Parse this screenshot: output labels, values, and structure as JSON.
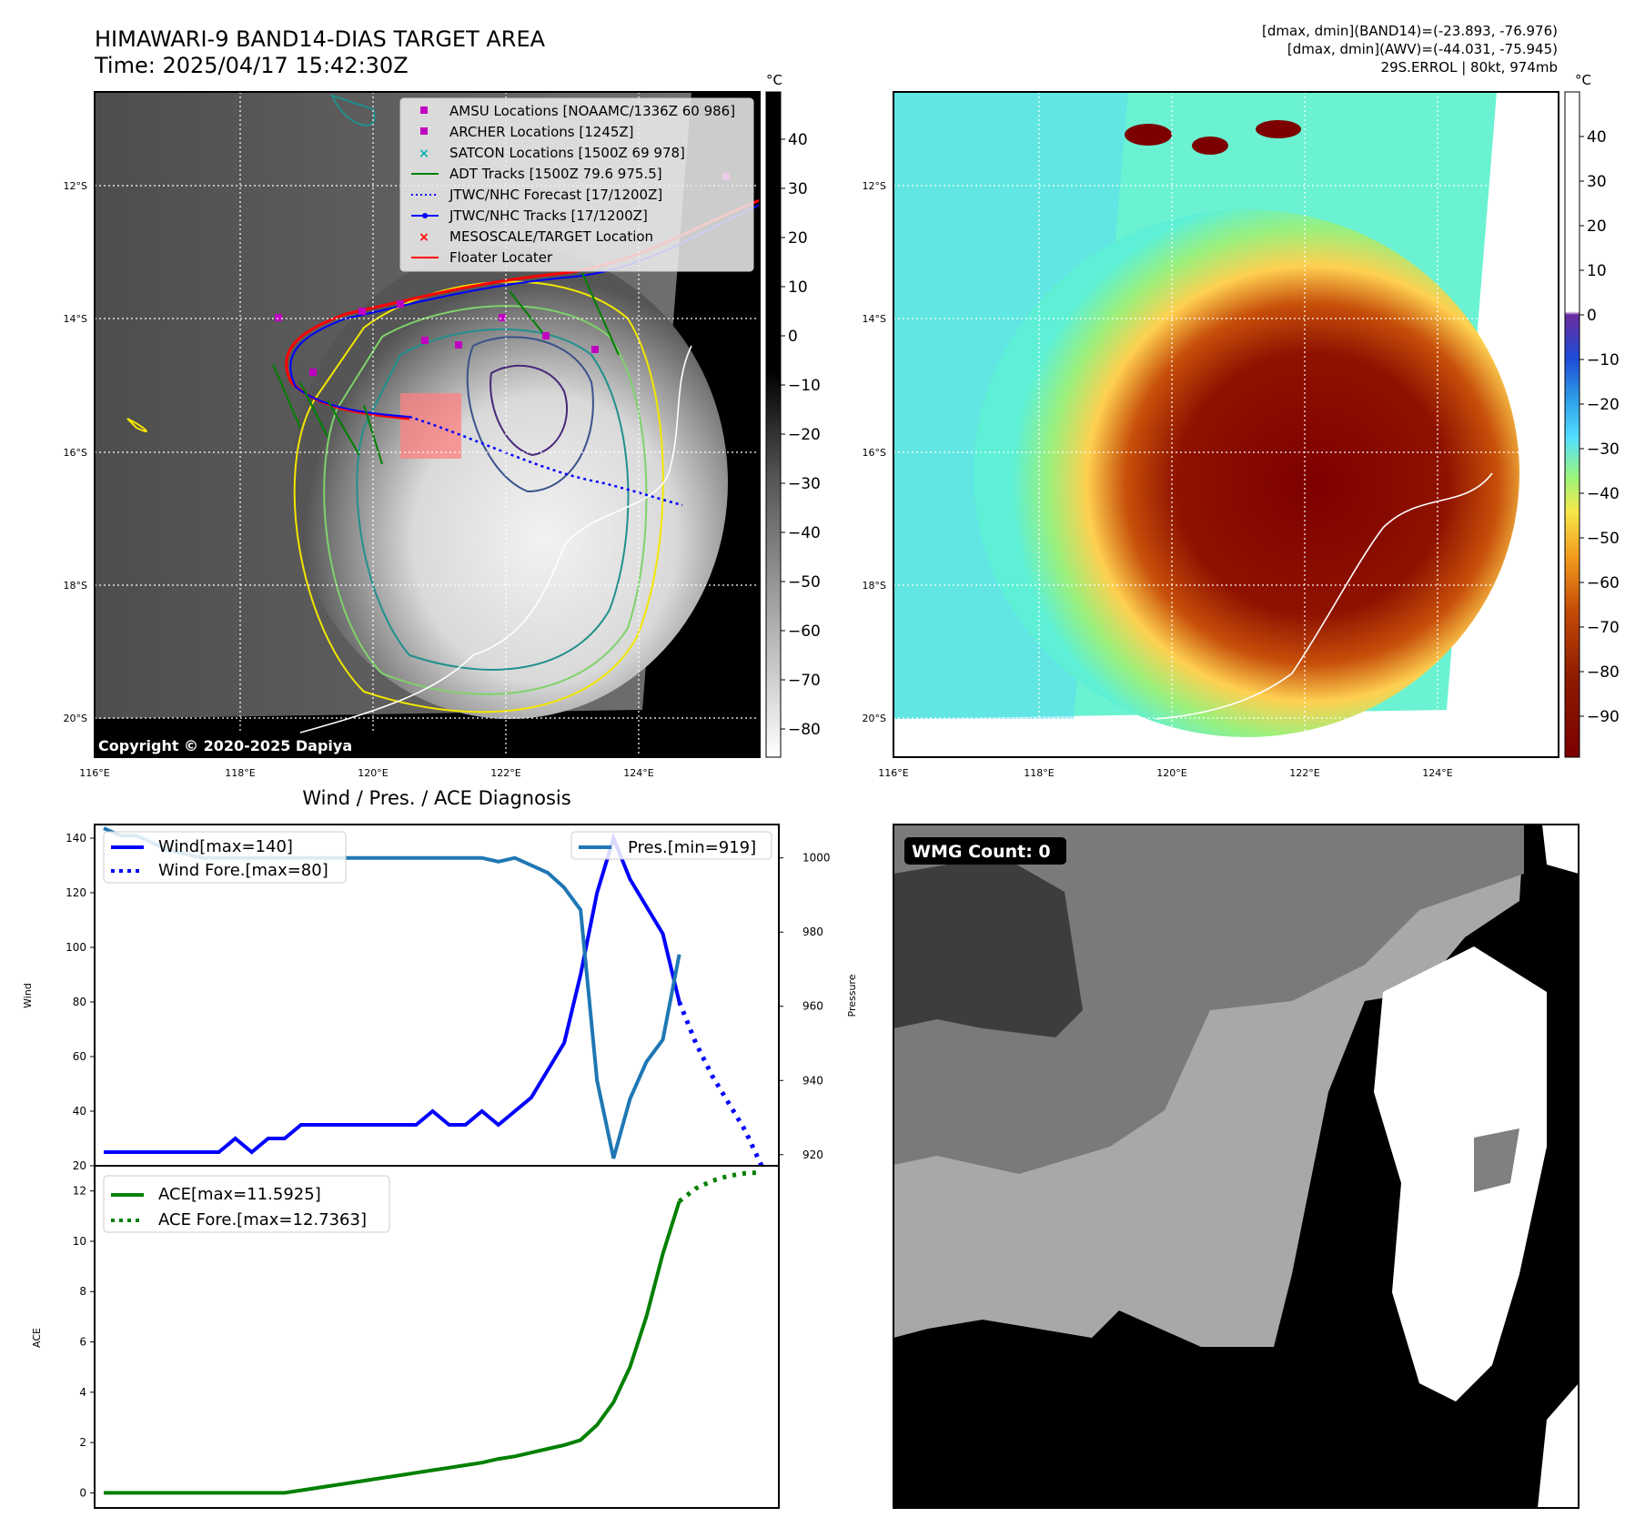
{
  "header": {
    "title": "HIMAWARI-9 BAND14-DIAS TARGET AREA",
    "time": "Time: 2025/04/17 15:42:30Z",
    "stat_band14": "[dmax, dmin](BAND14)=(-23.893, -76.976)",
    "stat_awv": "[dmax, dmin](AWV)=(-44.031, -75.945)",
    "storm_info": "29S.ERROL | 80kt, 974mb"
  },
  "map_axes": {
    "lon_ticks": [
      "116°E",
      "118°E",
      "120°E",
      "122°E",
      "124°E"
    ],
    "lat_ticks": [
      "12°S",
      "14°S",
      "16°S",
      "18°S",
      "20°S"
    ]
  },
  "colorbar_left": {
    "unit": "°C",
    "ticks": [
      "40",
      "30",
      "20",
      "10",
      "0",
      "−10",
      "−20",
      "−30",
      "−40",
      "−50",
      "−60",
      "−70",
      "−80"
    ]
  },
  "colorbar_right": {
    "unit": "°C",
    "ticks": [
      "40",
      "30",
      "20",
      "10",
      "0",
      "−10",
      "−20",
      "−30",
      "−40",
      "−50",
      "−60",
      "−70",
      "−80",
      "−90"
    ]
  },
  "legend_map": [
    {
      "label": "AMSU Locations [NOAAMC/1336Z 60 986]",
      "color": "#c000c0",
      "marker": "square"
    },
    {
      "label": "ARCHER Locations [1245Z]",
      "color": "#c000c0",
      "marker": "square"
    },
    {
      "label": "SATCON Locations [1500Z 69 978]",
      "color": "#00b0b0",
      "marker": "x"
    },
    {
      "label": "ADT Tracks [1500Z 79.6 975.5]",
      "color": "#008000",
      "marker": "line"
    },
    {
      "label": "JTWC/NHC Forecast [17/1200Z]",
      "color": "#0000ff",
      "marker": "dotted"
    },
    {
      "label": "JTWC/NHC Tracks [17/1200Z]",
      "color": "#0000ff",
      "marker": "line-dot"
    },
    {
      "label": "MESOSCALE/TARGET Location",
      "color": "#ff0000",
      "marker": "x"
    },
    {
      "label": "Floater Locater",
      "color": "#ff0000",
      "marker": "line"
    }
  ],
  "copyright": "Copyright © 2020-2025 Dapiya",
  "wmg_label": "WMG Count: 0",
  "chart_data": [
    {
      "type": "line",
      "title": "Wind / Pres. / ACE Diagnosis",
      "ylabel": "Wind",
      "ylabel_right": "Pressure",
      "ylim": [
        20,
        145
      ],
      "ylim_right": [
        917,
        1009
      ],
      "yticks": [
        "140",
        "120",
        "100",
        "80",
        "60",
        "40",
        "20"
      ],
      "yticks_right": [
        "1000",
        "980",
        "960",
        "940",
        "920"
      ],
      "x": [
        0,
        1,
        2,
        3,
        4,
        5,
        6,
        7,
        8,
        9,
        10,
        11,
        12,
        13,
        14,
        15,
        16,
        17,
        18,
        19,
        20,
        21,
        22,
        23,
        24,
        25,
        26,
        27,
        28,
        29,
        30,
        31,
        32,
        33,
        34,
        35
      ],
      "series": [
        {
          "name": "Wind[max=140]",
          "color": "#0000ff",
          "style": "solid",
          "axis": "left",
          "values": [
            25,
            25,
            25,
            25,
            25,
            25,
            25,
            25,
            30,
            25,
            30,
            30,
            35,
            35,
            35,
            35,
            35,
            35,
            35,
            35,
            40,
            35,
            35,
            40,
            35,
            40,
            45,
            55,
            65,
            90,
            120,
            140,
            125,
            115,
            105,
            80
          ]
        },
        {
          "name": "Wind Fore.[max=80]",
          "color": "#0000ff",
          "style": "dotted",
          "axis": "left",
          "x": [
            35,
            36,
            37,
            38,
            39,
            40
          ],
          "values": [
            80,
            65,
            53,
            43,
            33,
            20
          ]
        },
        {
          "name": "Pres.[min=919]",
          "color": "#1f77b4",
          "style": "solid",
          "axis": "right",
          "values": [
            1008,
            1006,
            1006,
            1004,
            1002,
            1001,
            1000,
            1000,
            1000,
            1000,
            1000,
            1000,
            1000,
            1000,
            1000,
            1000,
            1000,
            1000,
            1000,
            1000,
            1000,
            1000,
            1000,
            1000,
            999,
            1000,
            998,
            996,
            992,
            986,
            940,
            919,
            935,
            945,
            951,
            974
          ]
        }
      ]
    },
    {
      "type": "line",
      "ylabel": "ACE",
      "ylim": [
        -0.6,
        13
      ],
      "yticks": [
        "12",
        "10",
        "8",
        "6",
        "4",
        "2",
        "0"
      ],
      "x": [
        0,
        1,
        2,
        3,
        4,
        5,
        6,
        7,
        8,
        9,
        10,
        11,
        12,
        13,
        14,
        15,
        16,
        17,
        18,
        19,
        20,
        21,
        22,
        23,
        24,
        25,
        26,
        27,
        28,
        29,
        30,
        31,
        32,
        33,
        34,
        35
      ],
      "series": [
        {
          "name": "ACE[max=11.5925]",
          "color": "#008000",
          "style": "solid",
          "values": [
            0,
            0,
            0,
            0,
            0,
            0,
            0,
            0,
            0,
            0,
            0,
            0,
            0.1,
            0.2,
            0.3,
            0.4,
            0.5,
            0.6,
            0.7,
            0.8,
            0.9,
            1.0,
            1.1,
            1.2,
            1.35,
            1.45,
            1.6,
            1.75,
            1.9,
            2.1,
            2.7,
            3.6,
            5.0,
            7.0,
            9.5,
            11.59
          ]
        },
        {
          "name": "ACE Fore.[max=12.7363]",
          "color": "#008000",
          "style": "dotted",
          "x": [
            35,
            36,
            37,
            38,
            39,
            40
          ],
          "values": [
            11.59,
            12.1,
            12.4,
            12.6,
            12.7,
            12.74
          ]
        }
      ]
    }
  ]
}
